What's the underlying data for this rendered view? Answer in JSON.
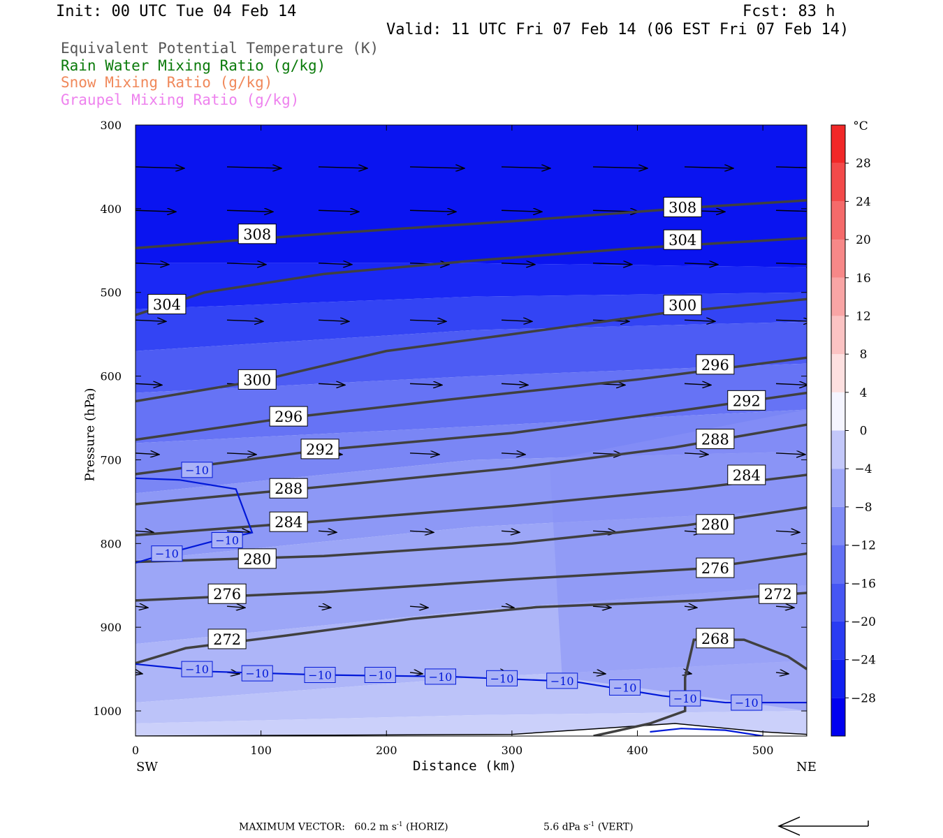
{
  "header": {
    "init": "Init: 00 UTC Tue 04 Feb 14",
    "fcst": "Fcst:   83 h",
    "valid": "Valid: 11 UTC Fri 07 Feb 14 (06 EST Fri 07 Feb 14)"
  },
  "variables": [
    {
      "label": "Equivalent Potential Temperature (K)",
      "color": "#555555"
    },
    {
      "label": "Rain Water Mixing Ratio (g/kg)",
      "color": "#0a7a0a"
    },
    {
      "label": "Snow Mixing Ratio (g/kg)",
      "color": "#f0885a"
    },
    {
      "label": "Graupel Mixing Ratio (g/kg)",
      "color": "#ee82ee"
    }
  ],
  "chart_data": {
    "type": "cross-section",
    "xlabel": "Distance (km)",
    "ylabel": "Pressure (hPa)",
    "x_ticks": [
      0,
      100,
      200,
      300,
      400,
      500
    ],
    "y_ticks": [
      300,
      400,
      500,
      600,
      700,
      800,
      900,
      1000
    ],
    "xlim": [
      0,
      535
    ],
    "ylim": [
      1030,
      300
    ],
    "y_scale": "linear-reversed",
    "left_end_label": "SW",
    "right_end_label": "NE",
    "colorbar": {
      "unit": "°C",
      "labels": [
        28,
        24,
        20,
        16,
        12,
        8,
        4,
        0,
        -4,
        -8,
        -12,
        -16,
        -20,
        -24,
        -28
      ],
      "range": [
        -32,
        32
      ]
    },
    "theta_e_contours": [
      {
        "value": 308,
        "label_positions": [
          [
            97,
            430
          ],
          [
            436,
            398
          ]
        ],
        "points": [
          [
            0,
            447
          ],
          [
            150,
            430
          ],
          [
            300,
            415
          ],
          [
            450,
            398
          ],
          [
            535,
            390
          ]
        ]
      },
      {
        "value": 304,
        "label_positions": [
          [
            25,
            514
          ],
          [
            436,
            437
          ]
        ],
        "points": [
          [
            0,
            527
          ],
          [
            55,
            500
          ],
          [
            150,
            478
          ],
          [
            270,
            462
          ],
          [
            400,
            447
          ],
          [
            535,
            435
          ]
        ]
      },
      {
        "value": 300,
        "label_positions": [
          [
            97,
            604
          ],
          [
            436,
            515
          ]
        ],
        "points": [
          [
            0,
            630
          ],
          [
            100,
            605
          ],
          [
            200,
            570
          ],
          [
            300,
            550
          ],
          [
            420,
            525
          ],
          [
            535,
            508
          ]
        ]
      },
      {
        "value": 296,
        "label_positions": [
          [
            122,
            648
          ],
          [
            462,
            586
          ]
        ],
        "points": [
          [
            0,
            676
          ],
          [
            120,
            650
          ],
          [
            250,
            628
          ],
          [
            400,
            604
          ],
          [
            535,
            578
          ]
        ]
      },
      {
        "value": 292,
        "label_positions": [
          [
            147,
            687
          ],
          [
            487,
            629
          ]
        ],
        "points": [
          [
            0,
            717
          ],
          [
            150,
            688
          ],
          [
            300,
            668
          ],
          [
            440,
            640
          ],
          [
            535,
            620
          ]
        ]
      },
      {
        "value": 288,
        "label_positions": [
          [
            122,
            734
          ],
          [
            462,
            675
          ]
        ],
        "points": [
          [
            0,
            753
          ],
          [
            150,
            732
          ],
          [
            300,
            710
          ],
          [
            430,
            685
          ],
          [
            535,
            658
          ]
        ]
      },
      {
        "value": 284,
        "label_positions": [
          [
            122,
            774
          ],
          [
            487,
            718
          ]
        ],
        "points": [
          [
            0,
            790
          ],
          [
            150,
            773
          ],
          [
            300,
            755
          ],
          [
            440,
            735
          ],
          [
            535,
            718
          ]
        ]
      },
      {
        "value": 280,
        "label_positions": [
          [
            97,
            818
          ],
          [
            462,
            777
          ]
        ],
        "points": [
          [
            0,
            822
          ],
          [
            150,
            815
          ],
          [
            300,
            800
          ],
          [
            440,
            778
          ],
          [
            535,
            757
          ]
        ]
      },
      {
        "value": 276,
        "label_positions": [
          [
            73,
            860
          ],
          [
            462,
            829
          ]
        ],
        "points": [
          [
            0,
            868
          ],
          [
            150,
            858
          ],
          [
            300,
            843
          ],
          [
            450,
            830
          ],
          [
            535,
            812
          ]
        ]
      },
      {
        "value": 272,
        "label_positions": [
          [
            73,
            914
          ],
          [
            512,
            860
          ]
        ],
        "points": [
          [
            0,
            943
          ],
          [
            40,
            925
          ],
          [
            120,
            910
          ],
          [
            220,
            890
          ],
          [
            320,
            876
          ],
          [
            450,
            868
          ],
          [
            535,
            859
          ]
        ]
      },
      {
        "value": 268,
        "label_positions": [
          [
            462,
            913
          ]
        ],
        "points": [
          [
            365,
            1030
          ],
          [
            410,
            1015
          ],
          [
            438,
            1000
          ],
          [
            438,
            960
          ],
          [
            445,
            915
          ],
          [
            485,
            915
          ],
          [
            520,
            935
          ],
          [
            535,
            950
          ]
        ]
      }
    ],
    "temperature_contours": [
      {
        "value": -10,
        "label_positions": [
          [
            49,
            712
          ],
          [
            73,
            796
          ],
          [
            25,
            812
          ],
          [
            49,
            950
          ],
          [
            97,
            955
          ],
          [
            147,
            957
          ],
          [
            195,
            957
          ],
          [
            243,
            959
          ],
          [
            292,
            961
          ],
          [
            340,
            964
          ],
          [
            390,
            972
          ],
          [
            438,
            985
          ],
          [
            487,
            990
          ]
        ]
      }
    ]
  },
  "footer": {
    "max_vector": "MAXIMUM VECTOR:",
    "horiz": "60.2 m s",
    "horiz_exp": "-1",
    "horiz_tag": "(HORIZ)",
    "vert": "5.6 dPa s",
    "vert_exp": "-1",
    "vert_tag": "(VERT)"
  }
}
